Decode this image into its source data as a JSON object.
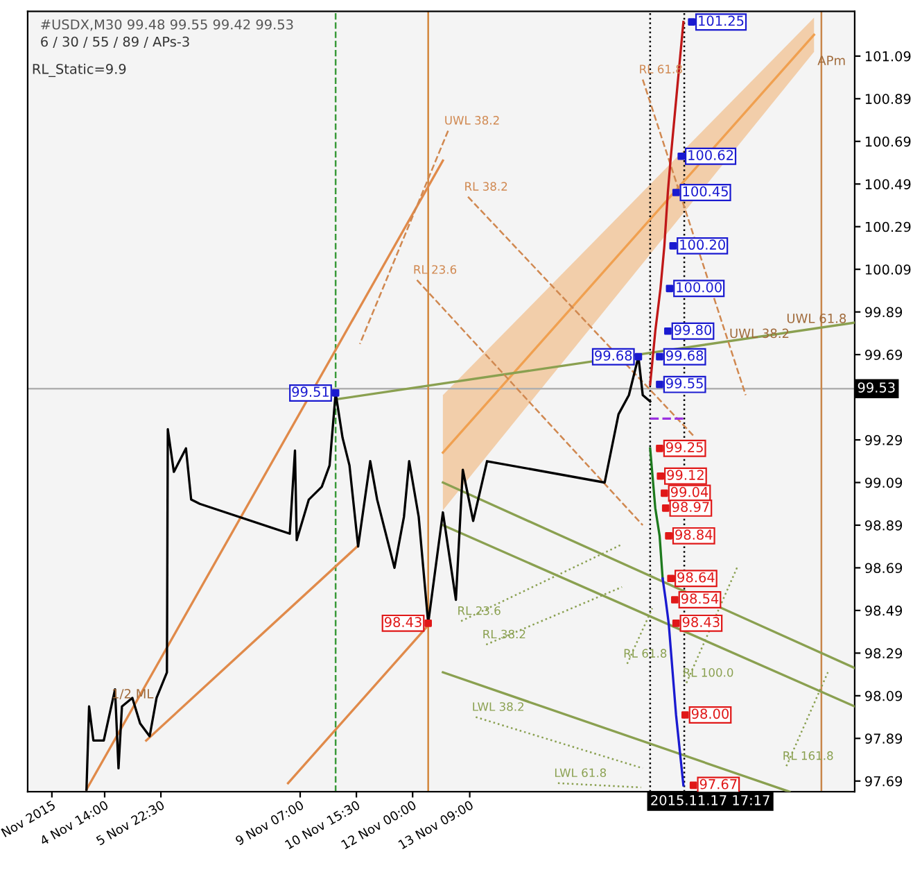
{
  "chart_data": {
    "type": "line",
    "title": "#USDX,M30 99.48 99.55 99.42 99.53",
    "subtitle": "6 / 30 / 55 / 89 / APs-3",
    "annotations": [
      "RL_Static=9.9",
      {
        "text": "APm",
        "x": "2015-11-21T18:00",
        "y": 101.0
      },
      {
        "text": "1/2 ML",
        "x": "2015-11-04T18:00",
        "y": 98.03
      },
      {
        "text": "UWL 38.2",
        "x": "2015-11-19T15:00",
        "y": 99.72
      },
      {
        "text": "UWL 61.8",
        "x": "2015-11-21T00:00",
        "y": 99.79
      }
    ],
    "xlim": [
      "2015-11-02T17:30",
      "2015-11-22T15:30"
    ],
    "ylim": [
      97.64,
      101.3
    ],
    "xticks": [
      {
        "value": "2015-11-03T07:30",
        "label": "Nov 2015"
      },
      {
        "value": "2015-11-04T14:00",
        "label": "4 Nov 14:00"
      },
      {
        "value": "2015-11-05T22:30",
        "label": "5 Nov 22:30"
      },
      {
        "value": "2015-11-09T07:00",
        "label": "9 Nov 07:00"
      },
      {
        "value": "2015-11-10T15:30",
        "label": "10 Nov 15:30"
      },
      {
        "value": "2015-11-12T00:00",
        "label": "12 Nov 00:00"
      },
      {
        "value": "2015-11-13T09:00",
        "label": "13 Nov 09:00"
      }
    ],
    "yticks": [
      97.69,
      97.89,
      98.09,
      98.29,
      98.49,
      98.69,
      98.89,
      99.09,
      99.29,
      {
        "value": 99.49,
        "label": null
      },
      99.69,
      99.89,
      100.09,
      100.29,
      100.49,
      100.69,
      100.89,
      101.09
    ],
    "ref_lines": [
      {
        "axis": "y",
        "value": 99.53,
        "label": "99.53",
        "color": "#b0b0b0",
        "line_style": "solid"
      },
      {
        "axis": "x",
        "value": "2015-11-17T17:17",
        "label": "2015.11.17 17:17",
        "color": "#000000",
        "line_style": "dotted"
      },
      {
        "axis": "x",
        "value": "2015-11-18T13:00",
        "label": null,
        "color": "#000000",
        "line_style": "dotted"
      },
      {
        "axis": "x",
        "value": "2015-11-12T09:00",
        "label": null,
        "color": "#d2863c",
        "line_style": "solid"
      },
      {
        "axis": "x",
        "value": "2015-11-21T20:15",
        "label": null,
        "color": "#c8864a",
        "line_style": "solid"
      },
      {
        "axis": "x",
        "value": "2015-11-10T03:30",
        "label": null,
        "color": "#3a9a3a",
        "line_style": "dashed"
      }
    ],
    "grid": false,
    "legend": false,
    "series": [
      {
        "color": "#f0a050",
        "x": [
          "2015-11-12T17:30",
          "2015-11-21T16:00"
        ],
        "values": [
          99.23,
          101.19
        ],
        "lower": [
          98.96,
          101.11
        ],
        "upper": [
          99.5,
          101.27
        ]
      },
      {
        "color": "#e08a4a",
        "x": [
          "2015-11-04T03:30",
          "2015-11-12T17:30"
        ],
        "values": [
          97.65,
          100.6
        ]
      },
      {
        "color": "#e08a4a",
        "x": [
          "2015-11-05T14:00",
          "2015-11-10T16:00"
        ],
        "values": [
          97.88,
          98.79
        ]
      },
      {
        "color": "#e08a4a",
        "x": [
          "2015-11-09T00:00",
          "2015-11-12T09:00"
        ],
        "values": [
          97.68,
          98.42
        ]
      },
      {
        "color": "#8aa050",
        "x": [
          "2015-11-10T03:30",
          "2015-11-22T15:30"
        ],
        "values": [
          99.48,
          99.84
        ]
      },
      {
        "color": "#8aa050",
        "x": [
          "2015-11-12T17:30",
          "2015-11-22T15:30"
        ],
        "values": [
          99.09,
          98.22
        ]
      },
      {
        "color": "#8aa050",
        "x": [
          "2015-11-12T17:30",
          "2015-11-22T15:30"
        ],
        "values": [
          98.89,
          98.04
        ]
      },
      {
        "color": "#8aa050",
        "x": [
          "2015-11-12T17:30",
          "2015-11-21T01:45"
        ],
        "values": [
          98.2,
          97.64
        ]
      },
      {
        "name": "RL 61.8",
        "color": "#d08850",
        "line_style": "dashed",
        "x": [
          "2015-11-17T13:00",
          "2015-11-20T00:30"
        ],
        "values": [
          100.98,
          99.5
        ]
      },
      {
        "name": "RL 38.2",
        "color": "#d08850",
        "line_style": "dashed",
        "x": [
          "2015-11-13T08:00",
          "2015-11-18T18:15"
        ],
        "values": [
          100.43,
          99.31
        ]
      },
      {
        "name": "RL 23.6",
        "color": "#d08850",
        "line_style": "dashed",
        "x": [
          "2015-11-12T02:30",
          "2015-11-17T13:00"
        ],
        "values": [
          100.04,
          98.89
        ]
      },
      {
        "name": "UWL 38.2",
        "color": "#d08850",
        "line_style": "dashed",
        "x": [
          "2015-11-12T20:30",
          "2015-11-10T17:30"
        ],
        "values": [
          100.74,
          99.74
        ]
      },
      {
        "name": "RL 23.6",
        "color": "#8aa050",
        "line_style": "dotted",
        "x": [
          "2015-11-13T04:00",
          "2015-11-17T01:00"
        ],
        "values": [
          98.44,
          98.8
        ]
      },
      {
        "name": "RL 38.2",
        "color": "#8aa050",
        "line_style": "dotted",
        "x": [
          "2015-11-13T18:30",
          "2015-11-17T01:00"
        ],
        "values": [
          98.33,
          98.6
        ]
      },
      {
        "name": "RL 61.8",
        "color": "#8aa050",
        "line_style": "dotted",
        "x": [
          "2015-11-17T04:00",
          "2015-11-17T18:30"
        ],
        "values": [
          98.24,
          98.5
        ]
      },
      {
        "name": "RL 100.0",
        "color": "#8aa050",
        "line_style": "dotted",
        "x": [
          "2015-11-18T14:15",
          "2015-11-19T20:00"
        ],
        "values": [
          98.15,
          98.7
        ]
      },
      {
        "name": "RL 161.8",
        "color": "#8aa050",
        "line_style": "dotted",
        "x": [
          "2015-11-21T00:00",
          "2015-11-22T00:00"
        ],
        "values": [
          97.76,
          98.2
        ]
      },
      {
        "name": "LWL 38.2",
        "color": "#8aa050",
        "line_style": "dotted",
        "x": [
          "2015-11-13T12:30",
          "2015-11-17T13:00"
        ],
        "values": [
          97.99,
          97.75
        ]
      },
      {
        "name": "LWL 61.8",
        "color": "#8aa050",
        "line_style": "dotted",
        "x": [
          "2015-11-15T12:00",
          "2015-11-17T12:00"
        ],
        "values": [
          97.68,
          97.66
        ]
      },
      {
        "color": "#000000",
        "x": [
          "2015-11-04T03:30",
          "2015-11-04T05:00",
          "2015-11-04T07:30",
          "2015-11-04T13:30",
          "2015-11-04T20:00",
          "2015-11-04T22:00",
          "2015-11-05T00:00",
          "2015-11-05T06:00",
          "2015-11-05T10:30",
          "2015-11-05T16:00",
          "2015-11-05T20:00",
          "2015-11-06T02:00",
          "2015-11-06T02:30",
          "2015-11-06T06:00",
          "2015-11-06T13:00",
          "2015-11-06T16:00",
          "2015-11-06T21:00",
          "2015-11-09T01:00",
          "2015-11-09T04:00",
          "2015-11-09T05:00",
          "2015-11-09T12:00",
          "2015-11-09T19:30",
          "2015-11-10T00:00",
          "2015-11-10T03:30",
          "2015-11-10T07:30",
          "2015-11-10T11:30",
          "2015-11-10T16:30",
          "2015-11-10T23:30",
          "2015-11-11T03:30",
          "2015-11-11T13:30",
          "2015-11-11T19:00",
          "2015-11-11T22:00",
          "2015-11-12T03:30",
          "2015-11-12T09:00",
          "2015-11-12T17:30",
          "2015-11-13T01:00",
          "2015-11-13T05:00",
          "2015-11-13T11:00",
          "2015-11-13T19:00",
          "2015-11-16T15:00",
          "2015-11-16T23:00",
          "2015-11-17T05:00",
          "2015-11-17T10:30",
          "2015-11-17T13:00",
          "2015-11-17T17:17"
        ],
        "values": [
          97.65,
          98.04,
          97.88,
          97.88,
          98.12,
          97.75,
          98.04,
          98.08,
          97.96,
          97.9,
          98.08,
          98.2,
          99.34,
          99.14,
          99.25,
          99.01,
          98.99,
          98.85,
          99.24,
          98.82,
          99.01,
          99.07,
          99.17,
          99.51,
          99.3,
          99.17,
          98.79,
          99.19,
          99.01,
          98.69,
          98.93,
          99.19,
          98.93,
          98.43,
          98.95,
          98.54,
          99.15,
          98.91,
          99.19,
          99.09,
          99.41,
          99.5,
          99.68,
          99.5,
          99.47
        ]
      },
      {
        "color": "#c01818",
        "x": [
          "2015-11-17T17:17",
          "2015-11-17T20:15",
          "2015-11-17T23:15",
          "2015-11-18T01:30",
          "2015-11-18T03:30",
          "2015-11-18T05:15",
          "2015-11-18T12:30"
        ],
        "values": [
          99.55,
          99.8,
          100.0,
          100.2,
          100.45,
          100.62,
          101.25
        ]
      },
      {
        "color": "#1e7a1e",
        "x": [
          "2015-11-17T17:17",
          "2015-11-17T20:15",
          "2015-11-17T22:45",
          "2015-11-18T00:30"
        ],
        "values": [
          99.25,
          98.97,
          98.84,
          98.64
        ]
      },
      {
        "color": "#1a1ad0",
        "x": [
          "2015-11-18T00:30",
          "2015-11-18T02:15",
          "2015-11-18T04:00",
          "2015-11-18T08:15",
          "2015-11-18T12:30"
        ],
        "values": [
          98.64,
          98.54,
          98.43,
          98.0,
          97.67
        ]
      },
      {
        "color": "#9b30e0",
        "line_style": "dashed",
        "x": [
          "2015-11-17T17:17",
          "2015-11-18T13:00"
        ],
        "values": [
          99.39,
          99.39
        ]
      },
      {
        "type": "scatter",
        "color": "#1a1ad0",
        "marker": "square",
        "x": [
          "2015-11-10T03:30",
          "2015-11-17T10:30",
          "2015-11-17T22:45",
          "2015-11-17T22:45",
          "2015-11-18T03:30",
          "2015-11-18T04:30",
          "2015-11-18T06:30",
          "2015-11-18T08:15",
          "2015-11-18T11:15",
          "2015-11-18T17:15"
        ],
        "values": [
          99.51,
          99.68,
          99.55,
          99.68,
          99.8,
          100.0,
          100.2,
          100.45,
          100.62,
          101.25
        ],
        "value_labels": [
          "99.51",
          "99.68",
          "99.55",
          "99.68",
          "99.80",
          "100.00",
          "100.20",
          "100.45",
          "100.62",
          "101.25"
        ]
      },
      {
        "type": "scatter",
        "color": "#e01818",
        "marker": "square",
        "x": [
          "2015-11-12T09:00",
          "2015-11-17T22:45",
          "2015-11-17T23:15",
          "2015-11-18T01:30",
          "2015-11-18T02:15",
          "2015-11-18T04:00",
          "2015-11-18T05:15",
          "2015-11-18T07:30",
          "2015-11-18T08:15",
          "2015-11-18T13:30",
          "2015-11-18T18:15"
        ],
        "values": [
          98.43,
          99.25,
          99.12,
          99.04,
          98.97,
          98.84,
          98.64,
          98.54,
          98.43,
          98.0,
          97.67
        ],
        "value_labels": [
          "98.43",
          "99.25",
          "99.12",
          "99.04",
          "98.97",
          "98.84",
          "98.64",
          "98.54",
          "98.43",
          "98.00",
          "97.67"
        ]
      }
    ]
  }
}
